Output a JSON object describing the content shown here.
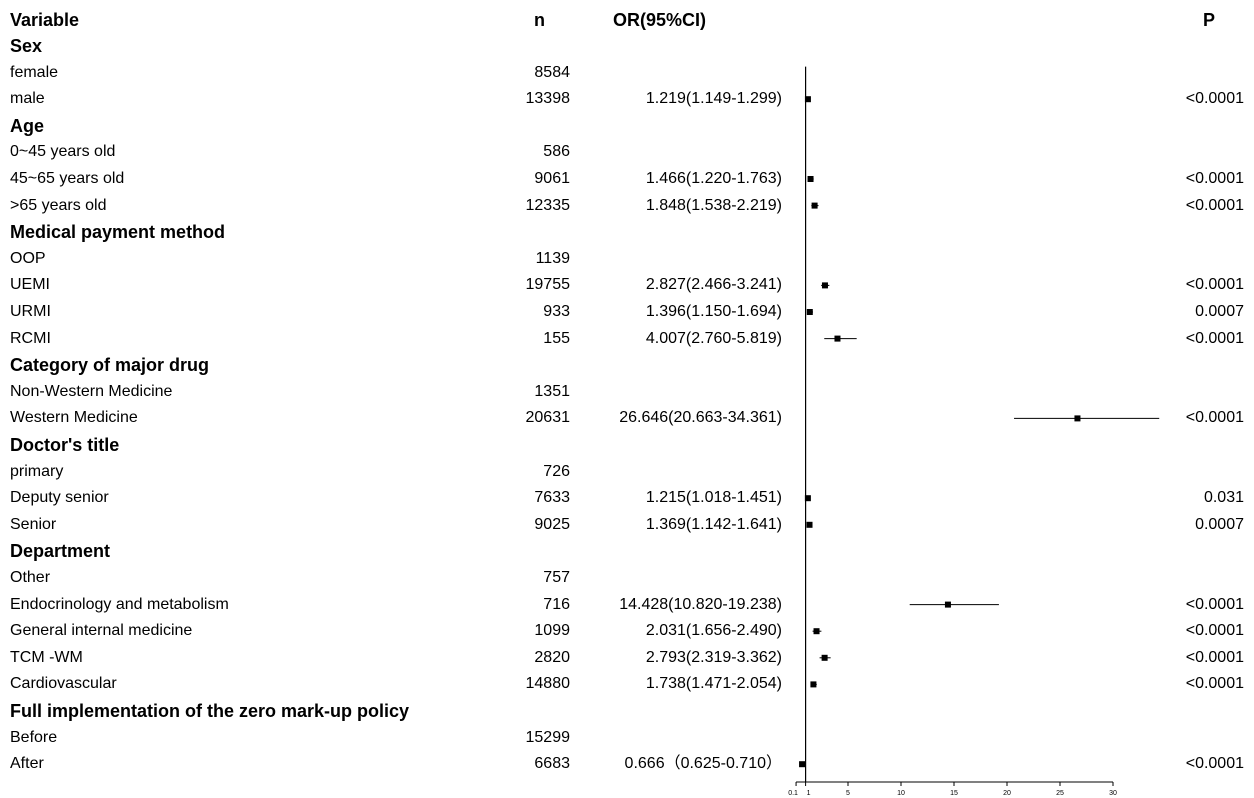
{
  "headers": {
    "variable": "Variable",
    "n": "n",
    "or": "OR(95%CI)",
    "p": "P"
  },
  "chart_data": {
    "type": "forest",
    "x_ticks": [
      "0.1",
      "1",
      "5",
      "10",
      "15",
      "20",
      "25",
      "30"
    ],
    "x_tick_values": [
      0.1,
      1,
      5,
      10,
      15,
      20,
      25,
      30
    ],
    "xlim": [
      0.1,
      30
    ],
    "reference_line": 1,
    "rows": [
      {
        "kind": "group",
        "label": "Sex"
      },
      {
        "kind": "item",
        "label": "female",
        "n": "8584"
      },
      {
        "kind": "item",
        "label": "male",
        "n": "13398",
        "or_text": "1.219(1.149-1.299)",
        "p": "<0.0001",
        "or": 1.219,
        "lo": 1.149,
        "hi": 1.299
      },
      {
        "kind": "group",
        "label": "Age"
      },
      {
        "kind": "item",
        "label": "0~45 years old",
        "n": "586"
      },
      {
        "kind": "item",
        "label": "45~65 years old",
        "n": "9061",
        "or_text": "1.466(1.220-1.763)",
        "p": "<0.0001",
        "or": 1.466,
        "lo": 1.22,
        "hi": 1.763
      },
      {
        "kind": "item",
        "label": ">65 years old",
        "n": "12335",
        "or_text": "1.848(1.538-2.219)",
        "p": "<0.0001",
        "or": 1.848,
        "lo": 1.538,
        "hi": 2.219
      },
      {
        "kind": "group",
        "label": "Medical payment method"
      },
      {
        "kind": "item",
        "label": "OOP",
        "n": "1139"
      },
      {
        "kind": "item",
        "label": "UEMI",
        "n": "19755",
        "or_text": "2.827(2.466-3.241)",
        "p": "<0.0001",
        "or": 2.827,
        "lo": 2.466,
        "hi": 3.241
      },
      {
        "kind": "item",
        "label": "URMI",
        "n": "933",
        "or_text": "1.396(1.150-1.694)",
        "p": "0.0007",
        "or": 1.396,
        "lo": 1.15,
        "hi": 1.694
      },
      {
        "kind": "item",
        "label": "RCMI",
        "n": "155",
        "or_text": "4.007(2.760-5.819)",
        "p": "<0.0001",
        "or": 4.007,
        "lo": 2.76,
        "hi": 5.819
      },
      {
        "kind": "group",
        "label": "Category of major drug"
      },
      {
        "kind": "item",
        "label": "Non-Western Medicine",
        "n": "1351"
      },
      {
        "kind": "item",
        "label": "Western Medicine",
        "n": "20631",
        "or_text": "26.646(20.663-34.361)",
        "p": "<0.0001",
        "or": 26.646,
        "lo": 20.663,
        "hi": 34.361
      },
      {
        "kind": "group",
        "label": "Doctor's title"
      },
      {
        "kind": "item",
        "label": "primary",
        "n": "726"
      },
      {
        "kind": "item",
        "label": "Deputy senior",
        "n": "7633",
        "or_text": "1.215(1.018-1.451)",
        "p": "0.031",
        "or": 1.215,
        "lo": 1.018,
        "hi": 1.451
      },
      {
        "kind": "item",
        "label": "Senior",
        "n": "9025",
        "or_text": "1.369(1.142-1.641)",
        "p": "0.0007",
        "or": 1.369,
        "lo": 1.142,
        "hi": 1.641
      },
      {
        "kind": "group",
        "label": "Department"
      },
      {
        "kind": "item",
        "label": "Other",
        "n": "757"
      },
      {
        "kind": "item",
        "label": "Endocrinology and metabolism",
        "n": "716",
        "or_text": "14.428(10.820-19.238)",
        "p": "<0.0001",
        "or": 14.428,
        "lo": 10.82,
        "hi": 19.238
      },
      {
        "kind": "item",
        "label": "General internal medicine",
        "n": "1099",
        "or_text": "2.031(1.656-2.490)",
        "p": "<0.0001",
        "or": 2.031,
        "lo": 1.656,
        "hi": 2.49
      },
      {
        "kind": "item",
        "label": "TCM -WM",
        "n": "2820",
        "or_text": "2.793(2.319-3.362)",
        "p": "<0.0001",
        "or": 2.793,
        "lo": 2.319,
        "hi": 3.362
      },
      {
        "kind": "item",
        "label": "Cardiovascular",
        "n": "14880",
        "or_text": "1.738(1.471-2.054)",
        "p": "<0.0001",
        "or": 1.738,
        "lo": 1.471,
        "hi": 2.054
      },
      {
        "kind": "group",
        "label": "Full implementation of the zero mark-up policy"
      },
      {
        "kind": "item",
        "label": "Before",
        "n": "15299"
      },
      {
        "kind": "item",
        "label": "After",
        "n": "6683",
        "or_text": "0.666（0.625-0.710）",
        "p": "<0.0001",
        "or": 0.666,
        "lo": 0.625,
        "hi": 0.71
      }
    ]
  }
}
